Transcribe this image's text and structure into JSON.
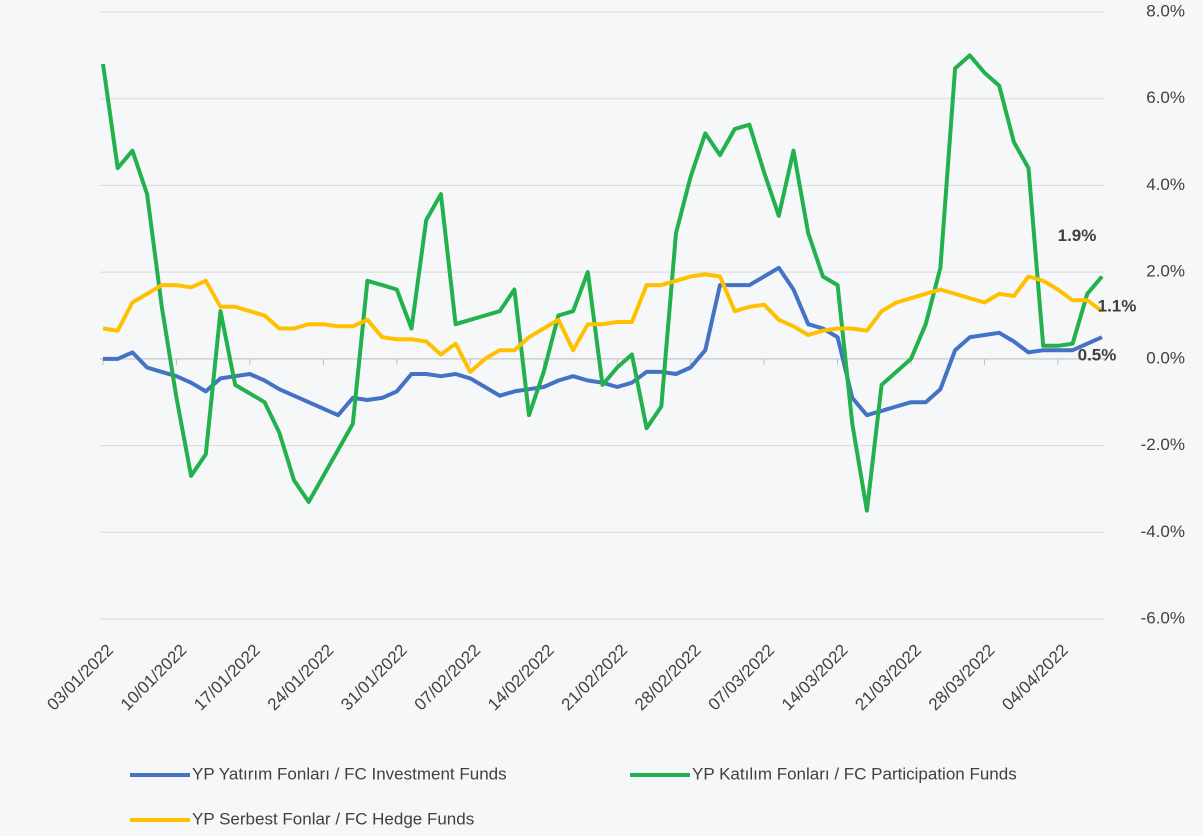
{
  "chart_data": {
    "type": "line",
    "categories": [
      "03/01/2022",
      null,
      null,
      null,
      null,
      "10/01/2022",
      null,
      null,
      null,
      null,
      "17/01/2022",
      null,
      null,
      null,
      null,
      "24/01/2022",
      null,
      null,
      null,
      null,
      "31/01/2022",
      null,
      null,
      null,
      null,
      "07/02/2022",
      null,
      null,
      null,
      null,
      "14/02/2022",
      null,
      null,
      null,
      null,
      "21/02/2022",
      null,
      null,
      null,
      null,
      "28/02/2022",
      null,
      null,
      null,
      null,
      "07/03/2022",
      null,
      null,
      null,
      null,
      "14/03/2022",
      null,
      null,
      null,
      null,
      "21/03/2022",
      null,
      null,
      null,
      null,
      "28/03/2022",
      null,
      null,
      null,
      null,
      "04/04/2022",
      null,
      null,
      null
    ],
    "series": [
      {
        "name": "YP Yatırım Fonları / FC Investment Funds",
        "color": "#4472c4",
        "values": [
          0.0,
          0.0,
          0.15,
          -0.2,
          -0.3,
          -0.4,
          -0.55,
          -0.75,
          -0.45,
          -0.4,
          -0.35,
          -0.5,
          -0.7,
          -0.85,
          -1.0,
          -1.15,
          -1.3,
          -0.9,
          -0.95,
          -0.9,
          -0.75,
          -0.35,
          -0.35,
          -0.4,
          -0.35,
          -0.45,
          -0.65,
          -0.85,
          -0.75,
          -0.7,
          -0.65,
          -0.5,
          -0.4,
          -0.5,
          -0.55,
          -0.65,
          -0.55,
          -0.3,
          -0.3,
          -0.35,
          -0.2,
          0.2,
          1.7,
          1.7,
          1.7,
          1.9,
          2.1,
          1.6,
          0.8,
          0.7,
          0.5,
          -0.9,
          -1.3,
          -1.2,
          -1.1,
          -1.0,
          -1.0,
          -0.7,
          0.2,
          0.5,
          0.55,
          0.6,
          0.4,
          0.15,
          0.2,
          0.2,
          0.2,
          0.35,
          0.5
        ],
        "value_labels": [
          null,
          null,
          null,
          null,
          null,
          null,
          null,
          null,
          null,
          null,
          null,
          null,
          null,
          null,
          null,
          null,
          null,
          null,
          null,
          null,
          null,
          null,
          null,
          null,
          null,
          null,
          null,
          null,
          null,
          null,
          null,
          null,
          null,
          null,
          null,
          null,
          null,
          null,
          null,
          null,
          null,
          null,
          null,
          null,
          null,
          null,
          null,
          null,
          null,
          null,
          null,
          null,
          null,
          null,
          null,
          null,
          null,
          null,
          null,
          null,
          null,
          null,
          null,
          null,
          null,
          null,
          null,
          null,
          "0.5%"
        ]
      },
      {
        "name": "YP Katılım Fonları / FC Participation Funds",
        "color": "#22b14c",
        "values": [
          6.8,
          4.4,
          4.8,
          3.8,
          1.2,
          -0.9,
          -2.7,
          -2.2,
          1.1,
          -0.6,
          -0.8,
          -1.0,
          -1.7,
          -2.8,
          -3.3,
          -2.7,
          -2.1,
          -1.5,
          1.8,
          1.7,
          1.6,
          0.7,
          3.2,
          3.8,
          0.8,
          0.9,
          1.0,
          1.1,
          1.6,
          -1.3,
          -0.3,
          1.0,
          1.1,
          2.0,
          -0.6,
          -0.2,
          0.1,
          -1.6,
          -1.1,
          2.9,
          4.2,
          5.2,
          4.7,
          5.3,
          5.4,
          4.3,
          3.3,
          4.8,
          2.9,
          1.9,
          1.7,
          -1.5,
          -3.5,
          -0.6,
          -0.3,
          0.0,
          0.8,
          2.1,
          6.7,
          7.0,
          6.6,
          6.3,
          5.0,
          4.4,
          0.3,
          0.3,
          0.35,
          1.5,
          1.9
        ],
        "value_labels": [
          null,
          null,
          null,
          null,
          null,
          null,
          null,
          null,
          null,
          null,
          null,
          null,
          null,
          null,
          null,
          null,
          null,
          null,
          null,
          null,
          null,
          null,
          null,
          null,
          null,
          null,
          null,
          null,
          null,
          null,
          null,
          null,
          null,
          null,
          null,
          null,
          null,
          null,
          null,
          null,
          null,
          null,
          null,
          null,
          null,
          null,
          null,
          null,
          null,
          null,
          null,
          null,
          null,
          null,
          null,
          null,
          null,
          null,
          null,
          null,
          null,
          null,
          null,
          null,
          null,
          null,
          null,
          null,
          "1.9%"
        ]
      },
      {
        "name": "YP Serbest Fonlar / FC Hedge Funds",
        "color": "#ffc000",
        "values": [
          0.7,
          0.65,
          1.3,
          1.5,
          1.7,
          1.7,
          1.65,
          1.8,
          1.2,
          1.2,
          1.1,
          1.0,
          0.7,
          0.7,
          0.8,
          0.8,
          0.75,
          0.75,
          0.9,
          0.5,
          0.45,
          0.45,
          0.4,
          0.1,
          0.35,
          -0.3,
          0.0,
          0.2,
          0.2,
          0.5,
          0.7,
          0.9,
          0.2,
          0.8,
          0.8,
          0.85,
          0.85,
          1.7,
          1.7,
          1.8,
          1.9,
          1.95,
          1.9,
          1.1,
          1.2,
          1.25,
          0.9,
          0.75,
          0.55,
          0.65,
          0.7,
          0.7,
          0.65,
          1.1,
          1.3,
          1.4,
          1.5,
          1.6,
          1.5,
          1.4,
          1.3,
          1.5,
          1.45,
          1.9,
          1.8,
          1.6,
          1.35,
          1.35,
          1.1
        ],
        "value_labels": [
          null,
          null,
          null,
          null,
          null,
          null,
          null,
          null,
          null,
          null,
          null,
          null,
          null,
          null,
          null,
          null,
          null,
          null,
          null,
          null,
          null,
          null,
          null,
          null,
          null,
          null,
          null,
          null,
          null,
          null,
          null,
          null,
          null,
          null,
          null,
          null,
          null,
          null,
          null,
          null,
          null,
          null,
          null,
          null,
          null,
          null,
          null,
          null,
          null,
          null,
          null,
          null,
          null,
          null,
          null,
          null,
          null,
          null,
          null,
          null,
          null,
          null,
          null,
          null,
          null,
          null,
          null,
          null,
          "1.1%"
        ]
      }
    ],
    "ylim": [
      -6,
      8
    ],
    "yticks": [
      {
        "value": -6,
        "label": "-6.0%"
      },
      {
        "value": -4,
        "label": "-4.0%"
      },
      {
        "value": -2,
        "label": "-2.0%"
      },
      {
        "value": 0,
        "label": "0.0%"
      },
      {
        "value": 2,
        "label": "2.0%"
      },
      {
        "value": 4,
        "label": "4.0%"
      },
      {
        "value": 6,
        "label": "6.0%"
      },
      {
        "value": 8,
        "label": "8.0%"
      }
    ],
    "grid": true
  }
}
